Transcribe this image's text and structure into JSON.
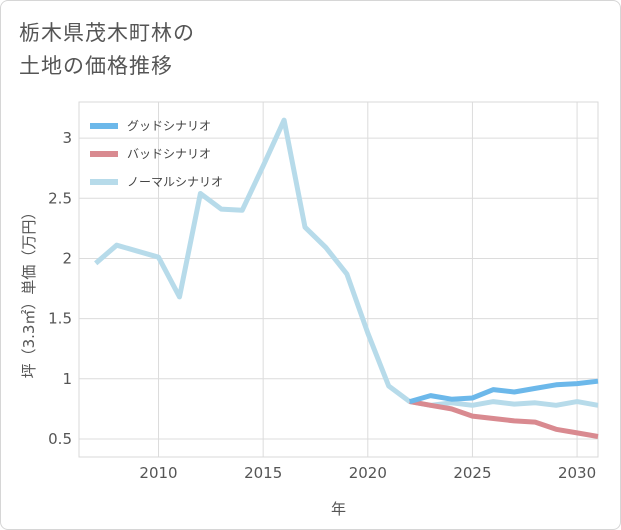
{
  "title_lines": [
    "栃木県茂木町林の",
    "土地の価格推移"
  ],
  "chart_data": {
    "type": "line",
    "title": "栃木県茂木町林の土地の価格推移",
    "xlabel": "年",
    "ylabel": "坪（3.3㎡）単価（万円）",
    "xlim": [
      2006.2,
      2031
    ],
    "ylim": [
      0.35,
      3.3
    ],
    "xticks": [
      2010,
      2015,
      2020,
      2025,
      2030
    ],
    "yticks": [
      0.5,
      1,
      1.5,
      2,
      2.5,
      3
    ],
    "ytick_labels": [
      "0.5",
      "1",
      "1.5",
      "2",
      "2.5",
      "3"
    ],
    "grid": true,
    "legend_position": "top-left",
    "series": [
      {
        "name": "グッドシナリオ",
        "color": "#6cb8ea",
        "x": [
          2022,
          2023,
          2024,
          2025,
          2026,
          2027,
          2028,
          2029,
          2030,
          2031
        ],
        "values": [
          0.81,
          0.86,
          0.83,
          0.84,
          0.91,
          0.89,
          0.92,
          0.95,
          0.96,
          0.98
        ]
      },
      {
        "name": "バッドシナリオ",
        "color": "#d98a90",
        "x": [
          2022,
          2023,
          2024,
          2025,
          2026,
          2027,
          2028,
          2029,
          2030,
          2031
        ],
        "values": [
          0.81,
          0.78,
          0.75,
          0.69,
          0.67,
          0.65,
          0.64,
          0.58,
          0.55,
          0.52
        ]
      },
      {
        "name": "ノーマルシナリオ",
        "color": "#b7dbea",
        "x": [
          2007,
          2008,
          2009,
          2010,
          2011,
          2012,
          2013,
          2014,
          2015,
          2016,
          2017,
          2018,
          2019,
          2020,
          2021,
          2022,
          2023,
          2024,
          2025,
          2026,
          2027,
          2028,
          2029,
          2030,
          2031
        ],
        "values": [
          1.96,
          2.11,
          2.06,
          2.01,
          1.68,
          2.54,
          2.41,
          2.4,
          2.77,
          3.15,
          2.26,
          2.09,
          1.87,
          1.38,
          0.94,
          0.81,
          0.78,
          0.8,
          0.78,
          0.81,
          0.79,
          0.8,
          0.78,
          0.81,
          0.78
        ]
      }
    ]
  }
}
